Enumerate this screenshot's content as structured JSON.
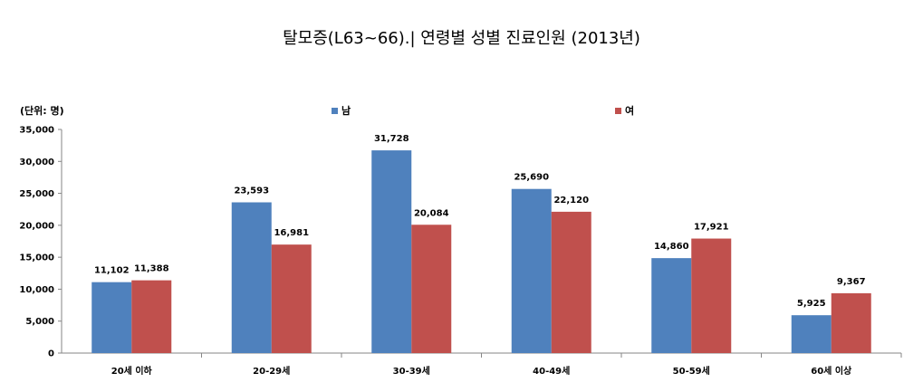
{
  "chart_data": {
    "type": "bar",
    "title": "탈모증(L63~66).| 연령별 성별 진료인원 (2013년)",
    "unit_label": "(단위: 명)",
    "categories": [
      "20세 이하",
      "20-29세",
      "30-39세",
      "40-49세",
      "50-59세",
      "60세 이상"
    ],
    "series": [
      {
        "name": "남",
        "color": "#4F81BD",
        "values": [
          11102,
          23593,
          31728,
          25690,
          14860,
          5925
        ],
        "labels": [
          "11,102",
          "23,593",
          "31,728",
          "25,690",
          "14,860",
          "5,925"
        ]
      },
      {
        "name": "여",
        "color": "#C0504D",
        "values": [
          11388,
          16981,
          20084,
          22120,
          17921,
          9367
        ],
        "labels": [
          "11,388",
          "16,981",
          "20,084",
          "22,120",
          "17,921",
          "9,367"
        ]
      }
    ],
    "ylim": [
      0,
      35000
    ],
    "yticks": [
      0,
      5000,
      10000,
      15000,
      20000,
      25000,
      30000,
      35000
    ],
    "ytick_labels": [
      "0",
      "5,000",
      "10,000",
      "15,000",
      "20,000",
      "25,000",
      "30,000",
      "35,000"
    ],
    "grid": false,
    "legend_position": "top"
  }
}
